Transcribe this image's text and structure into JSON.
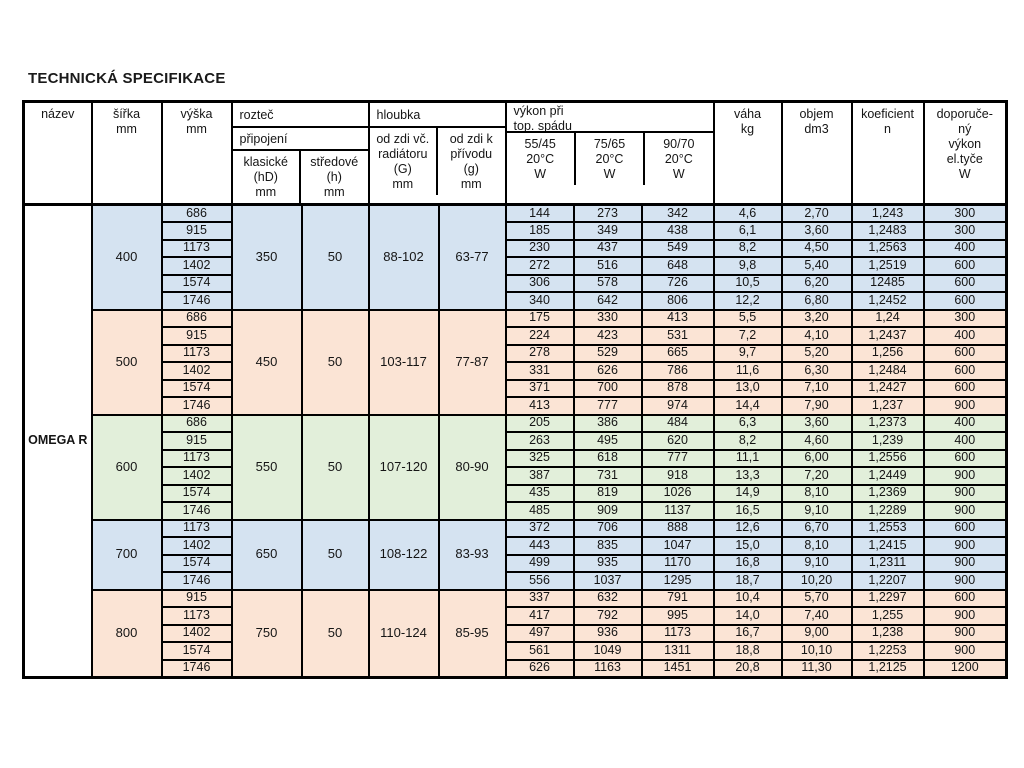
{
  "page": {
    "title": "TECHNICKÁ SPECIFIKACE"
  },
  "colors": {
    "blue": "#d5e3f1",
    "salmon": "#fbe4d5",
    "green": "#e2efda",
    "border": "#000000"
  },
  "table": {
    "product_name": "OMEGA R",
    "header": {
      "nazev": "název",
      "sirka": "šířka",
      "vyska": "výška",
      "roztec": "rozteč",
      "pripojeni": "připojení",
      "klasicke": [
        "klasické",
        "(hD)"
      ],
      "stredove": [
        "středové",
        "(h)"
      ],
      "hloubka": "hloubka",
      "od_zdi_vc": [
        "od zdi  vč.",
        "radiátoru",
        "(G)"
      ],
      "od_zdi_k": [
        "od zdi  k",
        "přívodu",
        "(g)"
      ],
      "vykon": [
        "výkon při",
        "top. spádu"
      ],
      "temps": [
        [
          "55/45",
          "20°C"
        ],
        [
          "75/65",
          "20°C"
        ],
        [
          "90/70",
          "20°C"
        ]
      ],
      "vaha": "váha",
      "objem": "objem",
      "koeficient": "koeficient",
      "doporuceny": [
        "doporuče-",
        "ný",
        "výkon",
        "el.tyče"
      ],
      "units": {
        "mm": "mm",
        "W": "W",
        "kg": "kg",
        "dm3": "dm3",
        "n": "n"
      }
    },
    "groups": [
      {
        "width": "400",
        "color": "blue",
        "roztec_klasicke": "350",
        "roztec_stredove": "50",
        "hloubka_G": "88-102",
        "hloubka_g": "63-77",
        "rows": [
          {
            "vyska": "686",
            "w5545": "144",
            "w7565": "273",
            "w9070": "342",
            "vaha": "4,6",
            "objem": "2,70",
            "koef": "1,243",
            "dop": "300"
          },
          {
            "vyska": "915",
            "w5545": "185",
            "w7565": "349",
            "w9070": "438",
            "vaha": "6,1",
            "objem": "3,60",
            "koef": "1,2483",
            "dop": "300"
          },
          {
            "vyska": "1173",
            "w5545": "230",
            "w7565": "437",
            "w9070": "549",
            "vaha": "8,2",
            "objem": "4,50",
            "koef": "1,2563",
            "dop": "400"
          },
          {
            "vyska": "1402",
            "w5545": "272",
            "w7565": "516",
            "w9070": "648",
            "vaha": "9,8",
            "objem": "5,40",
            "koef": "1,2519",
            "dop": "600"
          },
          {
            "vyska": "1574",
            "w5545": "306",
            "w7565": "578",
            "w9070": "726",
            "vaha": "10,5",
            "objem": "6,20",
            "koef": "12485",
            "dop": "600"
          },
          {
            "vyska": "1746",
            "w5545": "340",
            "w7565": "642",
            "w9070": "806",
            "vaha": "12,2",
            "objem": "6,80",
            "koef": "1,2452",
            "dop": "600"
          }
        ]
      },
      {
        "width": "500",
        "color": "salmon",
        "roztec_klasicke": "450",
        "roztec_stredove": "50",
        "hloubka_G": "103-117",
        "hloubka_g": "77-87",
        "rows": [
          {
            "vyska": "686",
            "w5545": "175",
            "w7565": "330",
            "w9070": "413",
            "vaha": "5,5",
            "objem": "3,20",
            "koef": "1,24",
            "dop": "300"
          },
          {
            "vyska": "915",
            "w5545": "224",
            "w7565": "423",
            "w9070": "531",
            "vaha": "7,2",
            "objem": "4,10",
            "koef": "1,2437",
            "dop": "400"
          },
          {
            "vyska": "1173",
            "w5545": "278",
            "w7565": "529",
            "w9070": "665",
            "vaha": "9,7",
            "objem": "5,20",
            "koef": "1,256",
            "dop": "600"
          },
          {
            "vyska": "1402",
            "w5545": "331",
            "w7565": "626",
            "w9070": "786",
            "vaha": "11,6",
            "objem": "6,30",
            "koef": "1,2484",
            "dop": "600"
          },
          {
            "vyska": "1574",
            "w5545": "371",
            "w7565": "700",
            "w9070": "878",
            "vaha": "13,0",
            "objem": "7,10",
            "koef": "1,2427",
            "dop": "600"
          },
          {
            "vyska": "1746",
            "w5545": "413",
            "w7565": "777",
            "w9070": "974",
            "vaha": "14,4",
            "objem": "7,90",
            "koef": "1,237",
            "dop": "900"
          }
        ]
      },
      {
        "width": "600",
        "color": "green",
        "roztec_klasicke": "550",
        "roztec_stredove": "50",
        "hloubka_G": "107-120",
        "hloubka_g": "80-90",
        "rows": [
          {
            "vyska": "686",
            "w5545": "205",
            "w7565": "386",
            "w9070": "484",
            "vaha": "6,3",
            "objem": "3,60",
            "koef": "1,2373",
            "dop": "400"
          },
          {
            "vyska": "915",
            "w5545": "263",
            "w7565": "495",
            "w9070": "620",
            "vaha": "8,2",
            "objem": "4,60",
            "koef": "1,239",
            "dop": "400"
          },
          {
            "vyska": "1173",
            "w5545": "325",
            "w7565": "618",
            "w9070": "777",
            "vaha": "11,1",
            "objem": "6,00",
            "koef": "1,2556",
            "dop": "600"
          },
          {
            "vyska": "1402",
            "w5545": "387",
            "w7565": "731",
            "w9070": "918",
            "vaha": "13,3",
            "objem": "7,20",
            "koef": "1,2449",
            "dop": "900"
          },
          {
            "vyska": "1574",
            "w5545": "435",
            "w7565": "819",
            "w9070": "1026",
            "vaha": "14,9",
            "objem": "8,10",
            "koef": "1,2369",
            "dop": "900"
          },
          {
            "vyska": "1746",
            "w5545": "485",
            "w7565": "909",
            "w9070": "1137",
            "vaha": "16,5",
            "objem": "9,10",
            "koef": "1,2289",
            "dop": "900"
          }
        ]
      },
      {
        "width": "700",
        "color": "blue",
        "roztec_klasicke": "650",
        "roztec_stredove": "50",
        "hloubka_G": "108-122",
        "hloubka_g": "83-93",
        "rows": [
          {
            "vyska": "1173",
            "w5545": "372",
            "w7565": "706",
            "w9070": "888",
            "vaha": "12,6",
            "objem": "6,70",
            "koef": "1,2553",
            "dop": "600"
          },
          {
            "vyska": "1402",
            "w5545": "443",
            "w7565": "835",
            "w9070": "1047",
            "vaha": "15,0",
            "objem": "8,10",
            "koef": "1,2415",
            "dop": "900"
          },
          {
            "vyska": "1574",
            "w5545": "499",
            "w7565": "935",
            "w9070": "1170",
            "vaha": "16,8",
            "objem": "9,10",
            "koef": "1,2311",
            "dop": "900"
          },
          {
            "vyska": "1746",
            "w5545": "556",
            "w7565": "1037",
            "w9070": "1295",
            "vaha": "18,7",
            "objem": "10,20",
            "koef": "1,2207",
            "dop": "900"
          }
        ]
      },
      {
        "width": "800",
        "color": "salmon",
        "roztec_klasicke": "750",
        "roztec_stredove": "50",
        "hloubka_G": "110-124",
        "hloubka_g": "85-95",
        "rows": [
          {
            "vyska": "915",
            "w5545": "337",
            "w7565": "632",
            "w9070": "791",
            "vaha": "10,4",
            "objem": "5,70",
            "koef": "1,2297",
            "dop": "600"
          },
          {
            "vyska": "1173",
            "w5545": "417",
            "w7565": "792",
            "w9070": "995",
            "vaha": "14,0",
            "objem": "7,40",
            "koef": "1,255",
            "dop": "900"
          },
          {
            "vyska": "1402",
            "w5545": "497",
            "w7565": "936",
            "w9070": "1173",
            "vaha": "16,7",
            "objem": "9,00",
            "koef": "1,238",
            "dop": "900"
          },
          {
            "vyska": "1574",
            "w5545": "561",
            "w7565": "1049",
            "w9070": "1311",
            "vaha": "18,8",
            "objem": "10,10",
            "koef": "1,2253",
            "dop": "900"
          },
          {
            "vyska": "1746",
            "w5545": "626",
            "w7565": "1163",
            "w9070": "1451",
            "vaha": "20,8",
            "objem": "11,30",
            "koef": "1,2125",
            "dop": "1200"
          }
        ]
      }
    ]
  }
}
